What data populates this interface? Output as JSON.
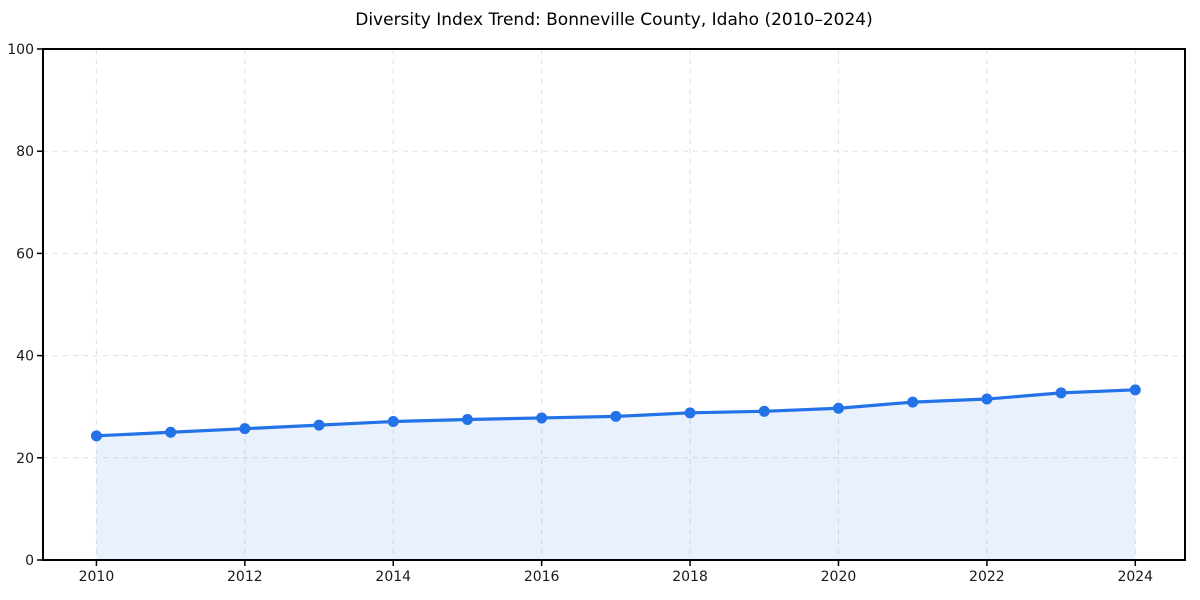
{
  "chart_data": {
    "type": "line",
    "title": "Diversity Index Trend: Bonneville County, Idaho (2010–2024)",
    "series_name": "Diversity Index",
    "x": [
      2010,
      2011,
      2012,
      2013,
      2014,
      2015,
      2016,
      2017,
      2018,
      2019,
      2020,
      2021,
      2022,
      2023,
      2024
    ],
    "values": [
      24.3,
      25.0,
      25.7,
      26.4,
      27.1,
      27.5,
      27.8,
      28.1,
      28.8,
      29.1,
      29.7,
      30.9,
      31.5,
      32.7,
      33.3
    ],
    "xlabel": "",
    "ylabel": "",
    "xlim": [
      2009.28,
      2024.67
    ],
    "ylim": [
      0,
      100
    ],
    "xticks": [
      2010,
      2012,
      2014,
      2016,
      2018,
      2020,
      2022,
      2024
    ],
    "yticks": [
      0,
      20,
      40,
      60,
      80,
      100
    ],
    "grid": true,
    "grid_style": "dashed",
    "legend": "none",
    "marker": "circle",
    "area_fill": true,
    "colors": {
      "line": "#2472e8",
      "marker": "#2472e8",
      "fill": "rgba(36,114,232,0.10)",
      "grid": "#e0e0e0",
      "spine": "#000000",
      "tick_label": "#1a1a1a",
      "background": "#ffffff"
    }
  }
}
